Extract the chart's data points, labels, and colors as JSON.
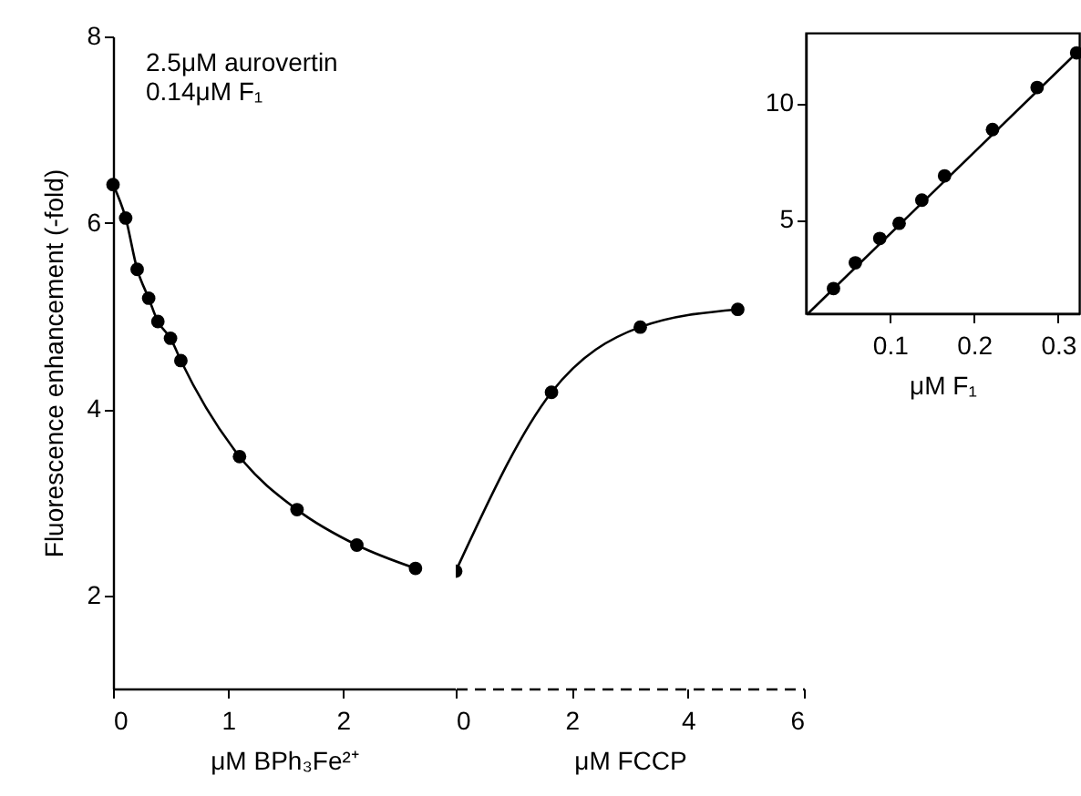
{
  "chart_data": [
    {
      "type": "line",
      "marker": "circle",
      "ylabel": "Fluorescence enhancement (-fold)",
      "xlabel": "μM BPh₃Fe²⁺",
      "annotations": [
        "2.5μM aurovertin",
        "0.14μM F₁"
      ],
      "x": [
        0,
        0.11,
        0.21,
        0.31,
        0.39,
        0.5,
        0.59,
        1.1,
        1.6,
        2.12,
        2.63
      ],
      "series": [
        {
          "color": "#000000",
          "values": [
            6.41,
            6.05,
            5.5,
            5.19,
            4.94,
            4.76,
            4.52,
            3.49,
            2.92,
            2.54,
            2.29
          ]
        }
      ],
      "xlim": [
        0,
        2.98
      ],
      "xticks": [
        0,
        1,
        2
      ],
      "ylim": [
        1,
        8
      ],
      "yticks": [
        2,
        4,
        6,
        8
      ]
    },
    {
      "type": "line",
      "marker": "circle",
      "xlabel": "μM FCCP",
      "tick_labels": "x",
      "x": [
        0,
        1.65,
        3.18,
        4.86
      ],
      "series": [
        {
          "color": "#000000",
          "values": [
            2.26,
            4.18,
            4.88,
            5.07
          ]
        }
      ],
      "xlim": [
        0,
        6
      ],
      "xticks": [
        0,
        2,
        4,
        6
      ],
      "ylim": [
        1,
        8
      ]
    },
    {
      "type": "scatter",
      "xlabel": "μM F₁",
      "series": [
        {
          "color": "#000000",
          "marker": "circle",
          "x": [
            0.033,
            0.059,
            0.088,
            0.111,
            0.138,
            0.165,
            0.222,
            0.275,
            0.322
          ],
          "values": [
            2.06,
            3.16,
            4.2,
            4.85,
            5.84,
            6.88,
            8.86,
            10.66,
            12.14
          ]
        },
        {
          "type": "line",
          "color": "#000000",
          "x": [
            0.003,
            0.325
          ],
          "values": [
            1,
            12.25
          ]
        }
      ],
      "xlim": [
        0,
        0.325
      ],
      "xticks": [
        0.1,
        0.2,
        0.3
      ],
      "ylim": [
        1,
        13
      ],
      "yticks": [
        5,
        10
      ]
    }
  ]
}
